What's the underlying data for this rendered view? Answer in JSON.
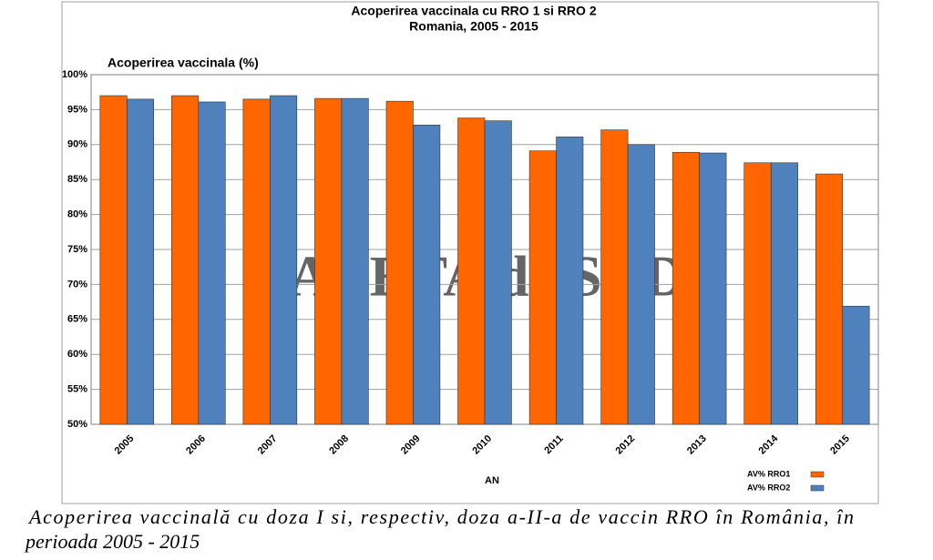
{
  "chart_data": {
    "type": "bar",
    "title": "Acoperirea vaccinala cu RRO 1 si RRO 2",
    "subtitle": "Romania, 2005 - 2015",
    "y_label": "Acoperirea vaccinala (%)",
    "x_label": "AN",
    "watermark": "GAZETA de SUD",
    "categories": [
      "2005",
      "2006",
      "2007",
      "2008",
      "2009",
      "2010",
      "2011",
      "2012",
      "2013",
      "2014",
      "2015"
    ],
    "series": [
      {
        "name": "AV% RRO1",
        "color": "#ff6600",
        "values": [
          97.0,
          97.0,
          96.5,
          96.6,
          96.2,
          93.8,
          89.1,
          92.1,
          88.9,
          87.4,
          85.8
        ]
      },
      {
        "name": "AV% RRO2",
        "color": "#4f81bd",
        "values": [
          96.5,
          96.1,
          97.0,
          96.6,
          92.8,
          93.4,
          91.1,
          90.0,
          88.8,
          87.4,
          66.9
        ]
      }
    ],
    "ylim": [
      50,
      100
    ],
    "yticks": [
      {
        "value": 50,
        "label": "50%"
      },
      {
        "value": 55,
        "label": "55%"
      },
      {
        "value": 60,
        "label": "60%"
      },
      {
        "value": 65,
        "label": "65%"
      },
      {
        "value": 70,
        "label": "70%"
      },
      {
        "value": 75,
        "label": "75%"
      },
      {
        "value": 80,
        "label": "80%"
      },
      {
        "value": 85,
        "label": "85%"
      },
      {
        "value": 90,
        "label": "90%"
      },
      {
        "value": 95,
        "label": "95%"
      },
      {
        "value": 100,
        "label": "100%"
      }
    ],
    "grid": true,
    "legend": "bottom-right"
  },
  "caption": [
    "Acoperirea vaccinală cu doza I si, respectiv, doza a-II-a de vaccin RRO în România, în",
    "perioada 2005 - 2015"
  ]
}
